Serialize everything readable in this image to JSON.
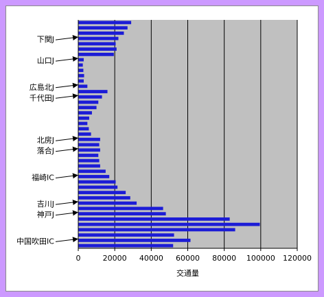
{
  "chart_data": {
    "type": "bar",
    "orientation": "horizontal",
    "title": "",
    "xlabel": "交通量",
    "ylabel": "",
    "xlim": [
      0,
      120000
    ],
    "xticks": [
      0,
      20000,
      40000,
      60000,
      80000,
      100000,
      120000
    ],
    "xtick_labels": [
      "0",
      "20000",
      "40000",
      "60000",
      "80000",
      "100000",
      "120000"
    ],
    "grid": "vertical",
    "plot_background": "#c0c0c0",
    "bar_color": "#1c1cd6",
    "page_background": "#cc99ff",
    "series": [
      {
        "values": [
          29000,
          27000,
          25000,
          22000,
          20500,
          21000,
          19500,
          3000,
          2500,
          2800,
          3200,
          3000,
          5000,
          16000,
          13000,
          11000,
          10000,
          7500,
          6000,
          5000,
          5800,
          7000,
          12000,
          11500,
          12000,
          11000,
          11500,
          12000,
          15000,
          17000,
          20500,
          21500,
          26000,
          28500,
          32000,
          46500,
          48000,
          83000,
          99500,
          86000,
          52500,
          61500,
          52000
        ]
      }
    ],
    "annotations": [
      {
        "label": "下関J",
        "bar_index": 3
      },
      {
        "label": "山口J",
        "bar_index": 7
      },
      {
        "label": "広島北J",
        "bar_index": 12
      },
      {
        "label": "千代田J",
        "bar_index": 14
      },
      {
        "label": "北房J",
        "bar_index": 22
      },
      {
        "label": "落合J",
        "bar_index": 24
      },
      {
        "label": "福崎IC",
        "bar_index": 29
      },
      {
        "label": "吉川J",
        "bar_index": 34
      },
      {
        "label": "神戸J",
        "bar_index": 36
      },
      {
        "label": "中国吹田IC",
        "bar_index": 41
      }
    ]
  }
}
